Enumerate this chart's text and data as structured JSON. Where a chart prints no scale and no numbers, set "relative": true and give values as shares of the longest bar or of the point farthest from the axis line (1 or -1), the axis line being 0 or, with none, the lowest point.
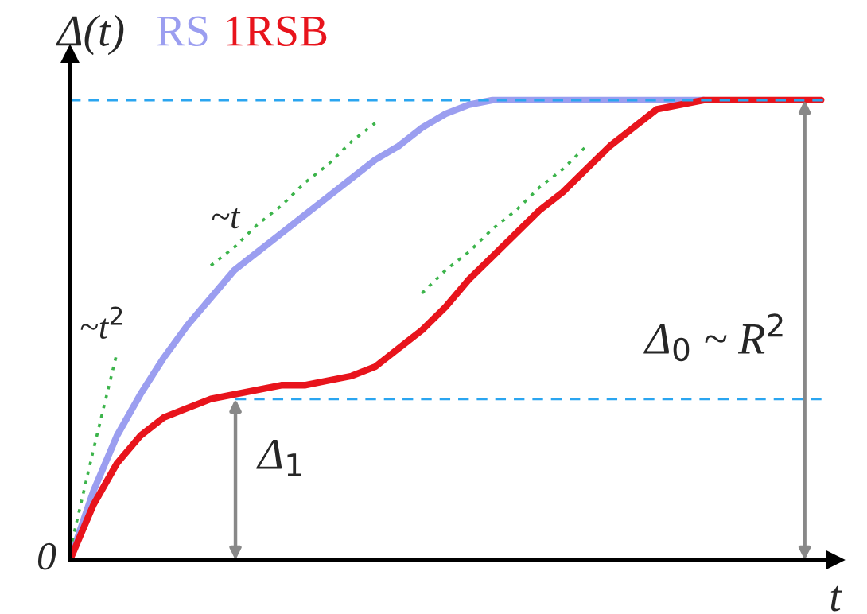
{
  "chart_data": {
    "type": "line",
    "relative": true,
    "ylabel": "Δ(t)",
    "xlabel": "t",
    "tick_labels": false,
    "categories": [
      null,
      null,
      null,
      null,
      null,
      null,
      null,
      null,
      null,
      null,
      null,
      null,
      null,
      null,
      null,
      null,
      null,
      null,
      null,
      null,
      null,
      null,
      null,
      null,
      null,
      null,
      null,
      null,
      null,
      null,
      null,
      null,
      null
    ],
    "series": [
      {
        "name": "RS",
        "color": "#9b9ef0",
        "values": [
          0,
          0.15,
          0.27,
          0.36,
          0.44,
          0.51,
          0.57,
          0.63,
          0.67,
          0.71,
          0.75,
          0.79,
          0.83,
          0.87,
          0.9,
          0.94,
          0.97,
          0.99,
          1,
          1,
          1,
          1,
          1,
          1,
          1,
          1,
          1,
          1,
          null,
          null,
          null,
          null,
          null
        ]
      },
      {
        "name": "1RSB",
        "color": "#e8141c",
        "values": [
          0,
          0.12,
          0.21,
          0.27,
          0.31,
          0.33,
          0.35,
          0.36,
          0.37,
          0.38,
          0.38,
          0.39,
          0.4,
          0.42,
          0.46,
          0.5,
          0.55,
          0.61,
          0.66,
          0.71,
          0.76,
          0.8,
          0.85,
          0.9,
          0.94,
          0.98,
          0.99,
          1,
          1,
          1,
          1,
          1,
          1
        ]
      },
      {
        "color": "#3cb44b",
        "line_style": "dotted",
        "values": [
          0.02,
          0.24,
          0.45,
          null,
          null,
          null,
          null,
          null,
          null,
          null,
          null,
          null,
          null,
          null,
          null,
          null,
          null,
          null,
          null,
          null,
          null,
          null,
          null,
          null,
          null,
          null,
          null,
          null,
          null,
          null,
          null,
          null,
          null
        ]
      },
      {
        "color": "#3cb44b",
        "line_style": "dotted",
        "values": [
          null,
          null,
          null,
          null,
          null,
          null,
          0.64,
          0.68,
          0.73,
          0.77,
          0.82,
          0.86,
          0.91,
          0.95,
          null,
          null,
          null,
          null,
          null,
          null,
          null,
          null,
          null,
          null,
          null,
          null,
          null,
          null,
          null,
          null,
          null,
          null,
          null
        ]
      },
      {
        "color": "#3cb44b",
        "line_style": "dotted",
        "values": [
          null,
          null,
          null,
          null,
          null,
          null,
          null,
          null,
          null,
          null,
          null,
          null,
          null,
          null,
          null,
          0.58,
          0.63,
          0.67,
          0.72,
          0.76,
          0.81,
          0.85,
          0.9,
          null,
          null,
          null,
          null,
          null,
          null,
          null,
          null,
          null,
          null
        ]
      }
    ],
    "ref_lines": [
      {
        "axis": "y",
        "value": 1,
        "color": "#2aa5f0",
        "line_style": "dashed"
      },
      {
        "axis": "y",
        "value": 0.35,
        "color": "#2aa5f0",
        "line_style": "dashed"
      }
    ],
    "annotations": [
      "~t$^{2}$",
      "~t",
      "Δ$_{1}$",
      "Δ$_{0}$ ~ R$^{2}$",
      "0"
    ]
  }
}
